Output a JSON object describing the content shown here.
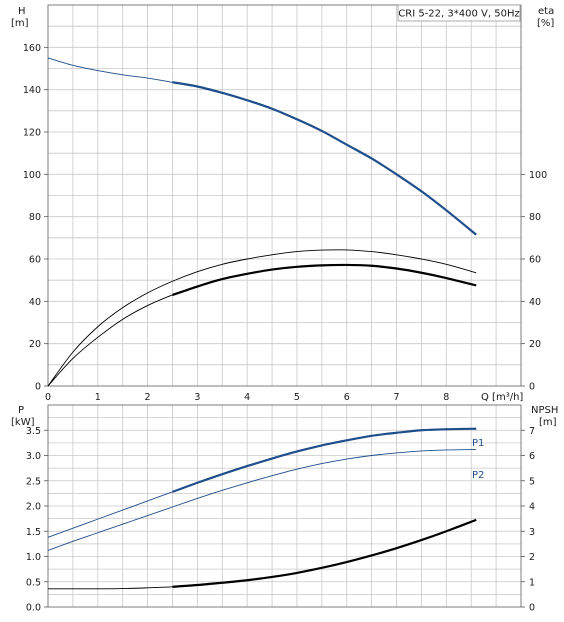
{
  "chart_data": [
    {
      "type": "line",
      "title": "CRI 5-22, 3*400 V, 50Hz",
      "xlabel": "Q [m³/h]",
      "xlim": [
        0,
        9.5
      ],
      "x_ticks": [
        0,
        1,
        2,
        3,
        4,
        5,
        6,
        7,
        8
      ],
      "left_axis": {
        "label_top": "H",
        "label_unit": "[m]",
        "ylim": [
          0,
          180
        ],
        "ticks": [
          0,
          20,
          40,
          60,
          80,
          100,
          120,
          140,
          160
        ]
      },
      "right_axis": {
        "label_top": "eta",
        "label_unit": "[%]",
        "ylim": [
          0,
          180
        ],
        "ticks": [
          0,
          20,
          40,
          60,
          80,
          100
        ]
      },
      "grid": true,
      "series": [
        {
          "axis": "left",
          "color": "#1f4e8c",
          "x": [
            0,
            0.5,
            1,
            1.5,
            2,
            2.5,
            3,
            3.5,
            4,
            4.5,
            5,
            5.5,
            6,
            6.5,
            7,
            7.5,
            8,
            8.6
          ],
          "y": [
            155,
            151.5,
            149,
            147,
            145.5,
            143.5,
            141.5,
            138.5,
            135,
            131,
            126,
            120.5,
            114,
            107.5,
            100,
            92,
            83,
            71.5
          ],
          "emph_from": 2.5
        },
        {
          "axis": "right",
          "color": "#000000",
          "x": [
            0,
            0.5,
            1,
            1.5,
            2,
            2.5,
            3,
            3.5,
            4,
            4.5,
            5,
            5.5,
            6,
            6.5,
            7,
            7.5,
            8,
            8.6
          ],
          "y": [
            0,
            16,
            28,
            37,
            44,
            49.5,
            54,
            57.5,
            60,
            62,
            63.5,
            64.2,
            64.3,
            63.5,
            62,
            60,
            57.5,
            53.5
          ],
          "emph_from": 99
        },
        {
          "axis": "right",
          "color": "#000000",
          "x": [
            0,
            0.5,
            1,
            1.5,
            2,
            2.5,
            3,
            3.5,
            4,
            4.5,
            5,
            5.5,
            6,
            6.5,
            7,
            7.5,
            8,
            8.6
          ],
          "y": [
            0,
            13,
            23,
            31.5,
            38,
            43,
            47,
            50.5,
            53,
            55,
            56.3,
            57,
            57.2,
            56.8,
            55.5,
            53.5,
            51,
            47.5
          ],
          "emph_from": 2.5
        }
      ]
    },
    {
      "type": "line",
      "xlim": [
        0,
        9.5
      ],
      "left_axis": {
        "label_top": "P",
        "label_unit": "[kW]",
        "ylim": [
          0,
          4
        ],
        "ticks": [
          0.0,
          0.5,
          1.0,
          1.5,
          2.0,
          2.5,
          3.0,
          3.5
        ]
      },
      "right_axis": {
        "label_top": "NPSH",
        "label_unit": "[m]",
        "ylim": [
          0,
          8
        ],
        "ticks": [
          0,
          1,
          2,
          3,
          4,
          5,
          6,
          7
        ]
      },
      "grid": true,
      "series": [
        {
          "name": "P1",
          "axis": "left",
          "color": "#1f4e8c",
          "x": [
            0,
            0.5,
            1,
            1.5,
            2,
            2.5,
            3,
            3.5,
            4,
            4.5,
            5,
            5.5,
            6,
            6.5,
            7,
            7.5,
            8,
            8.6
          ],
          "y": [
            1.38,
            1.56,
            1.74,
            1.92,
            2.1,
            2.28,
            2.46,
            2.63,
            2.79,
            2.94,
            3.08,
            3.2,
            3.3,
            3.39,
            3.45,
            3.5,
            3.52,
            3.53
          ],
          "emph_from": 2.5
        },
        {
          "name": "P2",
          "axis": "left",
          "color": "#1f4e8c",
          "x": [
            0,
            0.5,
            1,
            1.5,
            2,
            2.5,
            3,
            3.5,
            4,
            4.5,
            5,
            5.5,
            6,
            6.5,
            7,
            7.5,
            8,
            8.6
          ],
          "y": [
            1.12,
            1.3,
            1.47,
            1.64,
            1.81,
            1.98,
            2.15,
            2.31,
            2.46,
            2.6,
            2.73,
            2.84,
            2.93,
            3.0,
            3.05,
            3.09,
            3.11,
            3.12
          ],
          "emph_from": 99
        },
        {
          "axis": "right",
          "color": "#000000",
          "x": [
            0,
            0.5,
            1,
            1.5,
            2,
            2.5,
            3,
            3.5,
            4,
            4.5,
            5,
            5.5,
            6,
            6.5,
            7,
            7.5,
            8,
            8.6
          ],
          "y": [
            0.72,
            0.72,
            0.72,
            0.73,
            0.76,
            0.8,
            0.87,
            0.96,
            1.06,
            1.19,
            1.35,
            1.55,
            1.78,
            2.04,
            2.33,
            2.65,
            3.0,
            3.45
          ],
          "emph_from": 2.5
        }
      ]
    }
  ]
}
